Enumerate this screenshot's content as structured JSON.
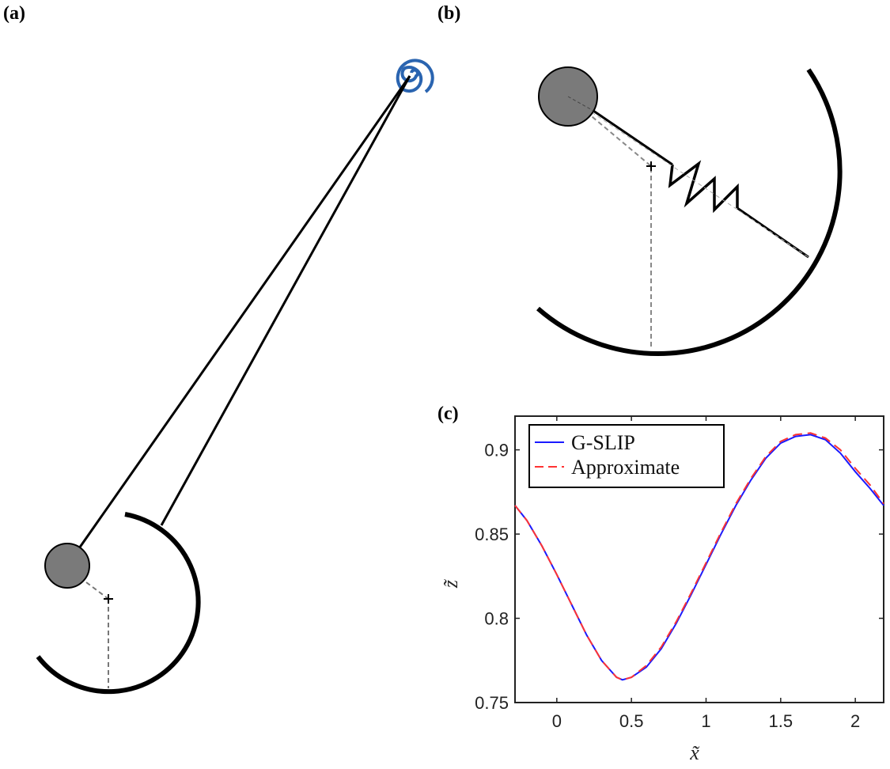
{
  "panels": {
    "a": "(a)",
    "b": "(b)",
    "c": "(c)"
  },
  "colors": {
    "spring_blue": "#2a64b0",
    "ball_gray": "#7a7a7a",
    "gslip": "#1a1aff",
    "approx": "#ff3333"
  },
  "chart_data": {
    "type": "line",
    "title": "",
    "xlabel": "x̃",
    "ylabel": "z̃",
    "xlim": [
      -0.28,
      2.19
    ],
    "ylim": [
      0.75,
      0.92
    ],
    "xticks": [
      0,
      0.5,
      1,
      1.5,
      2
    ],
    "xtick_labels": [
      "0",
      "0.5",
      "1",
      "1.5",
      "2"
    ],
    "yticks": [
      0.75,
      0.8,
      0.85,
      0.9
    ],
    "ytick_labels": [
      "0.75",
      "0.8",
      "0.85",
      "0.9"
    ],
    "legend_position": "top-left",
    "x": [
      -0.28,
      -0.2,
      -0.1,
      0,
      0.1,
      0.2,
      0.3,
      0.4,
      0.44,
      0.5,
      0.6,
      0.7,
      0.8,
      0.9,
      1.0,
      1.1,
      1.2,
      1.3,
      1.4,
      1.5,
      1.6,
      1.7,
      1.8,
      1.9,
      2.0,
      2.1,
      2.19
    ],
    "series": [
      {
        "name": "G-SLIP",
        "style": "solid",
        "values": [
          0.867,
          0.858,
          0.843,
          0.826,
          0.808,
          0.79,
          0.775,
          0.765,
          0.7635,
          0.765,
          0.771,
          0.782,
          0.797,
          0.814,
          0.832,
          0.85,
          0.867,
          0.882,
          0.895,
          0.904,
          0.908,
          0.909,
          0.906,
          0.898,
          0.887,
          0.877,
          0.867
        ]
      },
      {
        "name": "Approximate",
        "style": "dashed",
        "values": [
          0.867,
          0.858,
          0.843,
          0.826,
          0.808,
          0.79,
          0.775,
          0.765,
          0.7635,
          0.765,
          0.772,
          0.783,
          0.798,
          0.815,
          0.833,
          0.851,
          0.868,
          0.883,
          0.896,
          0.905,
          0.909,
          0.91,
          0.907,
          0.9,
          0.889,
          0.879,
          0.868
        ]
      }
    ]
  }
}
